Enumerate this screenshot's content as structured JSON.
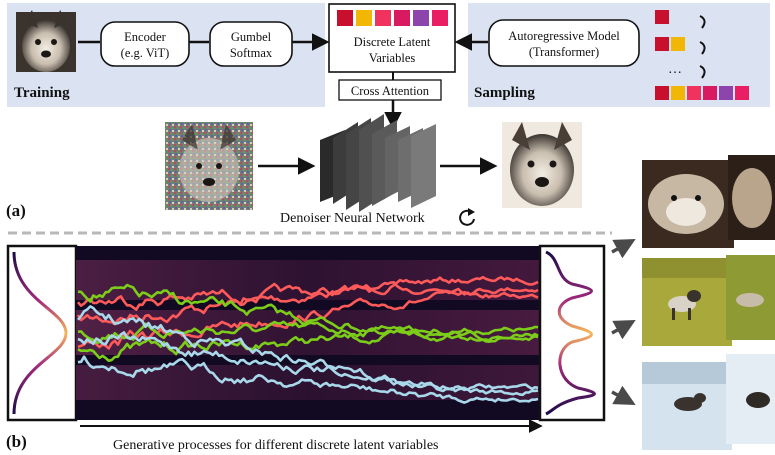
{
  "panel_a": {
    "panel_label": "(a)",
    "training": {
      "label": "Training",
      "encoder_label": [
        "Encoder",
        "(e.g. ViT)"
      ],
      "gumbel_label": [
        "Gumbel",
        "Softmax"
      ]
    },
    "latent": {
      "label": [
        "Discrete Latent",
        "Variables"
      ],
      "token_colors": [
        "#c8102e",
        "#f2b705",
        "#f0335e",
        "#d81b60",
        "#8e44ad",
        "#e91e63"
      ]
    },
    "cross_attention_label": "Cross Attention",
    "sampling": {
      "label": "Sampling",
      "model_label": [
        "Autoregressive Model",
        "(Transformer)"
      ],
      "ellipsis": "…"
    },
    "denoiser_label": "Denoiser Neural Network",
    "icons": [
      "dog-photo",
      "noisy-dog-photo",
      "denoised-dog-photo",
      "refresh-icon",
      "loop-arrow-icon"
    ]
  },
  "panel_b": {
    "panel_label": "(b)",
    "caption": "Generative processes for different discrete latent variables",
    "path_colors": [
      "#ff5a5a",
      "#7ccd1a",
      "#a8d8ea"
    ],
    "output_groups": [
      "dog-closeups",
      "husky-on-grass",
      "husky-in-snow"
    ]
  }
}
